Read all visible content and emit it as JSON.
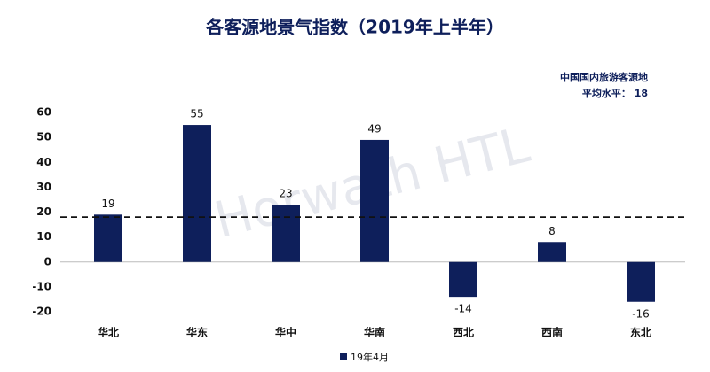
{
  "chart_data": {
    "type": "bar",
    "title": "各客源地景气指数（2019年上半年）",
    "categories": [
      "华北",
      "华东",
      "华中",
      "华南",
      "西北",
      "西南",
      "东北"
    ],
    "series": [
      {
        "name": "19年4月",
        "color": "#0e1f5b",
        "values": [
          19,
          55,
          23,
          49,
          -14,
          8,
          -16
        ]
      }
    ],
    "ylim": [
      -20,
      60
    ],
    "yticks": [
      -20,
      -10,
      0,
      10,
      20,
      30,
      40,
      50,
      60
    ],
    "reference_line": {
      "value": 18,
      "title": "中国国内旅游客源地",
      "label": "平均水平： 18"
    },
    "watermark": "Horwath HTL",
    "legend": "bottom"
  }
}
